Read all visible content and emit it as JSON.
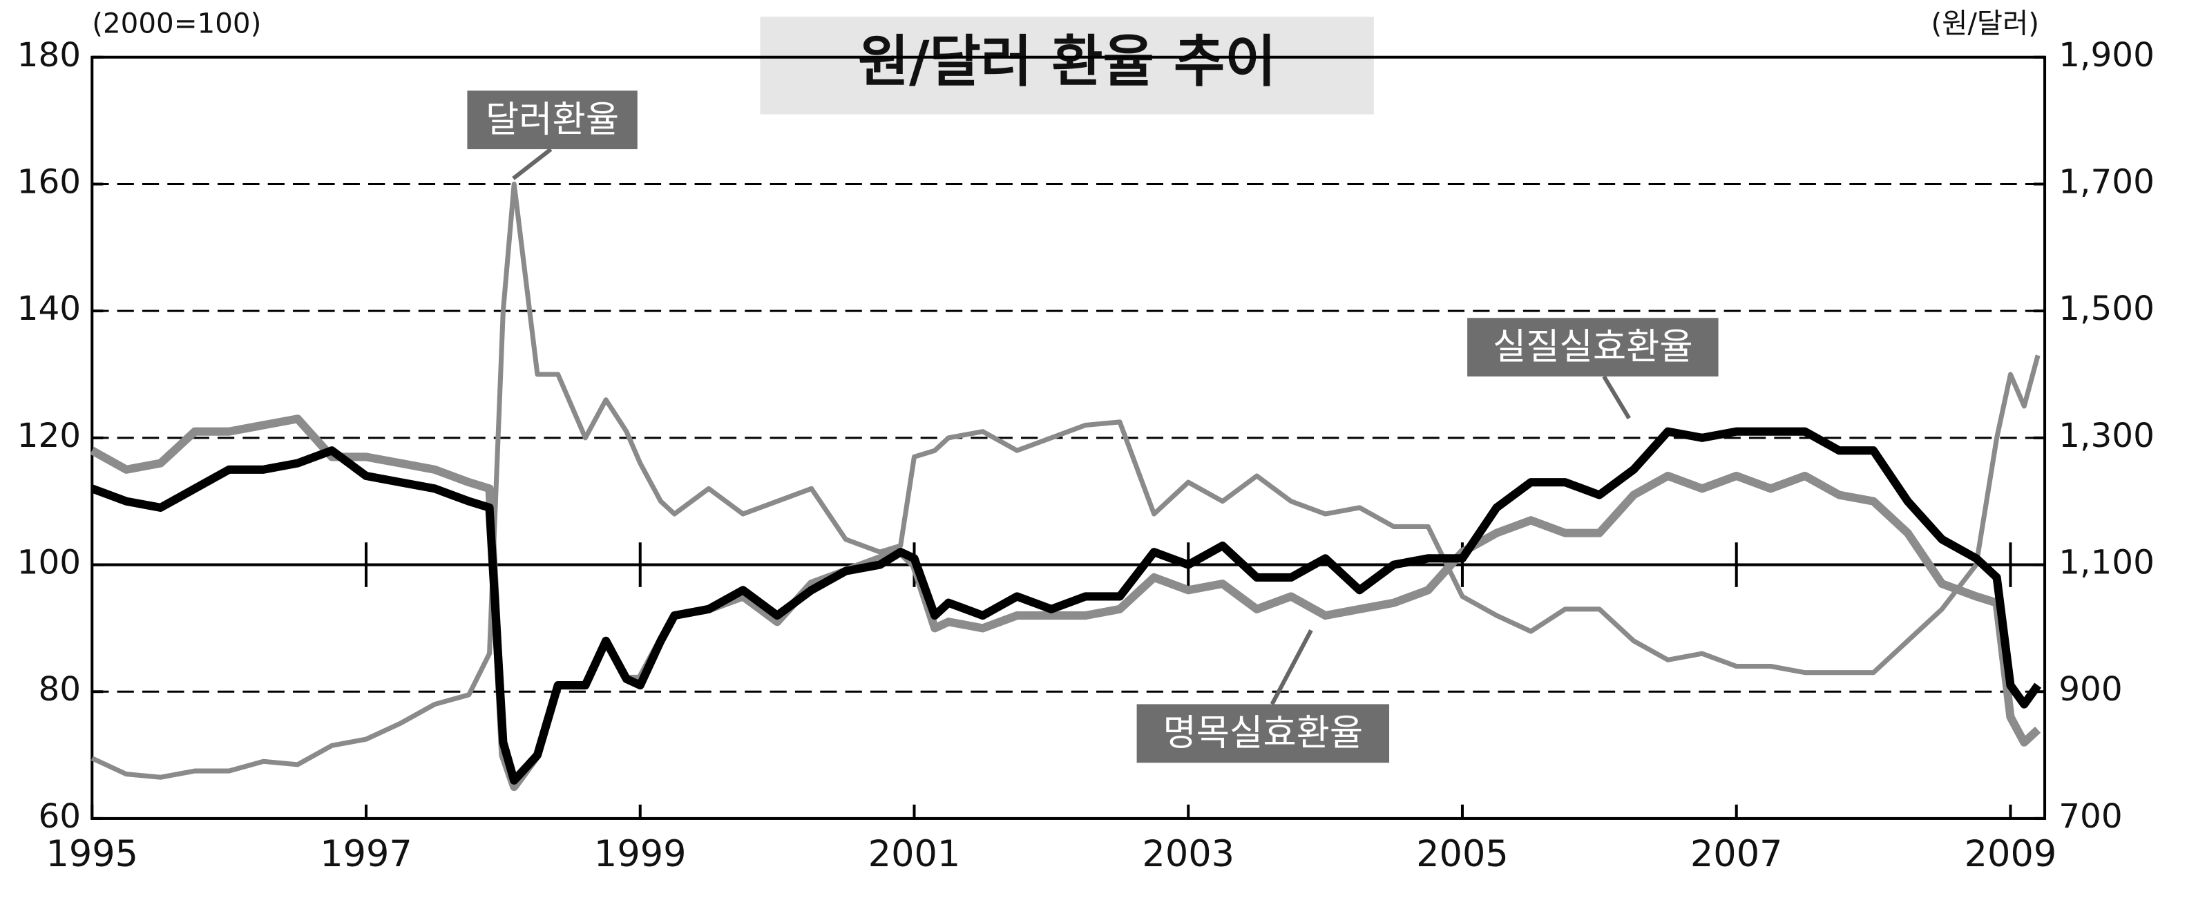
{
  "chart_data": {
    "type": "line",
    "title": "원/달러 환율 추이",
    "y_label": "(2000=100)",
    "y2_label": "(원/달러)",
    "xlim": [
      1995,
      2009.25
    ],
    "xticks": [
      1995,
      1997,
      1999,
      2001,
      2003,
      2005,
      2007,
      2009
    ],
    "ylim": [
      60,
      180
    ],
    "yticks": [
      60,
      80,
      100,
      120,
      140,
      160,
      180
    ],
    "y2lim": [
      700,
      1900
    ],
    "y2ticks": [
      700,
      900,
      {
        "value": 1100,
        "label": "1,100"
      },
      {
        "value": 1300,
        "label": "1,300"
      },
      {
        "value": 1500,
        "label": "1,500"
      },
      {
        "value": 1700,
        "label": "1,700"
      },
      {
        "value": 1900,
        "label": "1,900"
      }
    ],
    "grid": true,
    "baseline": 100,
    "x": [
      1995,
      1995.25,
      1995.5,
      1995.75,
      1996,
      1996.25,
      1996.5,
      1996.75,
      1997,
      1997.25,
      1997.5,
      1997.75,
      1997.9,
      1998,
      1998.08,
      1998.25,
      1998.4,
      1998.6,
      1998.75,
      1998.9,
      1999,
      1999.15,
      1999.25,
      1999.5,
      1999.75,
      2000,
      2000.25,
      2000.5,
      2000.75,
      2000.9,
      2001,
      2001.15,
      2001.25,
      2001.5,
      2001.75,
      2002,
      2002.25,
      2002.5,
      2002.75,
      2003,
      2003.25,
      2003.5,
      2003.75,
      2004,
      2004.25,
      2004.5,
      2004.75,
      2005,
      2005.25,
      2005.5,
      2005.75,
      2006,
      2006.25,
      2006.5,
      2006.75,
      2007,
      2007.25,
      2007.5,
      2007.75,
      2008,
      2008.25,
      2008.5,
      2008.75,
      2008.9,
      2009,
      2009.1,
      2009.2
    ],
    "series": [
      {
        "name": "달러환율",
        "color": "#8a8a8a",
        "axis": "y2",
        "values": [
          795,
          770,
          765,
          775,
          775,
          790,
          785,
          815,
          825,
          850,
          880,
          895,
          960,
          1500,
          1700,
          1400,
          1400,
          1300,
          1360,
          1310,
          1260,
          1200,
          1180,
          1220,
          1180,
          1200,
          1220,
          1140,
          1120,
          1130,
          1270,
          1280,
          1300,
          1310,
          1280,
          1300,
          1320,
          1325,
          1180,
          1230,
          1200,
          1240,
          1200,
          1180,
          1190,
          1160,
          1160,
          1050,
          1020,
          995,
          1030,
          1030,
          980,
          950,
          960,
          940,
          940,
          930,
          930,
          930,
          980,
          1030,
          1100,
          1300,
          1400,
          1350,
          1430
        ]
      },
      {
        "name": "실질실효환율",
        "color": "#000000",
        "values": [
          112,
          110,
          109,
          112,
          115,
          115,
          116,
          118,
          114,
          113,
          112,
          110,
          109,
          72,
          66,
          70,
          81,
          81,
          88,
          82,
          81,
          88,
          92,
          93,
          96,
          92,
          96,
          99,
          100,
          102,
          101,
          92,
          94,
          92,
          95,
          93,
          95,
          95,
          102,
          100,
          103,
          98,
          98,
          101,
          96,
          100,
          101,
          101,
          109,
          113,
          113,
          111,
          115,
          121,
          120,
          121,
          121,
          121,
          118,
          118,
          110,
          104,
          101,
          98,
          81,
          78,
          81
        ]
      },
      {
        "name": "명목실효환율",
        "color": "#8c8c8c",
        "values": [
          118,
          115,
          116,
          121,
          121,
          122,
          123,
          117,
          117,
          116,
          115,
          113,
          112,
          70,
          65,
          70,
          81,
          81,
          88,
          82,
          82,
          88,
          92,
          93,
          95,
          91,
          97,
          99,
          101,
          102,
          100,
          90,
          91,
          90,
          92,
          92,
          92,
          93,
          98,
          96,
          97,
          93,
          95,
          92,
          93,
          94,
          96,
          102,
          105,
          107,
          105,
          105,
          111,
          114,
          112,
          114,
          112,
          114,
          111,
          110,
          105,
          97,
          95,
          94,
          76,
          72,
          74
        ]
      }
    ]
  }
}
